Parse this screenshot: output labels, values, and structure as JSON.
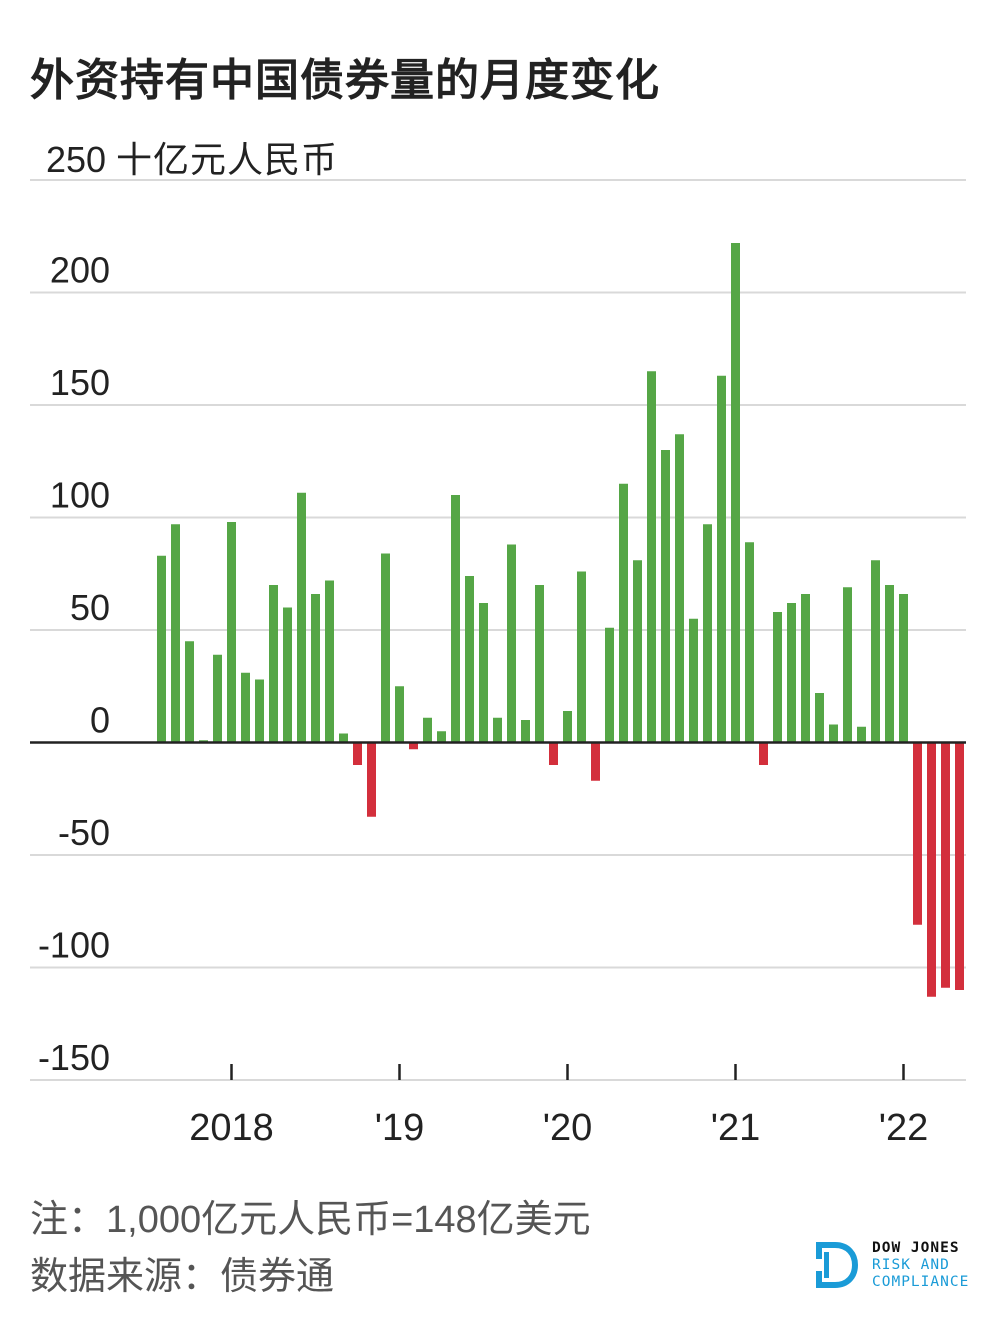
{
  "title": "外资持有中国债券量的月度变化",
  "footnote": "注：1,000亿元人民币=148亿美元",
  "source": "数据来源：债券通",
  "logo": {
    "line1": "DOW JONES",
    "line2": "RISK AND",
    "line3": "COMPLIANCE",
    "accent": "#1a9bd7"
  },
  "colors": {
    "positive": "#55a646",
    "negative": "#d32f3c",
    "grid": "#d9d9d9",
    "axis": "#222222"
  },
  "chart_data": {
    "type": "bar",
    "title": "外资持有中国债券量的月度变化",
    "ylabel": "十亿元人民币",
    "unit_label": "十亿元人民币",
    "ylim": [
      -150,
      250
    ],
    "yticks": [
      250,
      200,
      150,
      100,
      50,
      0,
      -50,
      -100,
      -150
    ],
    "ytick_labels": [
      "250",
      "200",
      "150",
      "100",
      "50",
      "0",
      "-50",
      "-100",
      "-150"
    ],
    "xtick_labels": [
      {
        "label": "2018",
        "index": 5
      },
      {
        "label": "'19",
        "index": 17
      },
      {
        "label": "'20",
        "index": 29
      },
      {
        "label": "'21",
        "index": 41
      },
      {
        "label": "'22",
        "index": 53
      }
    ],
    "first_period": "2017-08",
    "values": [
      83,
      97,
      45,
      1,
      39,
      98,
      31,
      28,
      70,
      60,
      111,
      66,
      72,
      4,
      -10,
      -33,
      84,
      25,
      -3,
      11,
      5,
      110,
      74,
      62,
      11,
      88,
      10,
      70,
      -10,
      14,
      76,
      -17,
      51,
      115,
      81,
      165,
      130,
      137,
      55,
      97,
      163,
      222,
      89,
      -10,
      58,
      62,
      66,
      22,
      8,
      69,
      7,
      81,
      70,
      66,
      -81,
      -113,
      -109,
      -110
    ]
  }
}
